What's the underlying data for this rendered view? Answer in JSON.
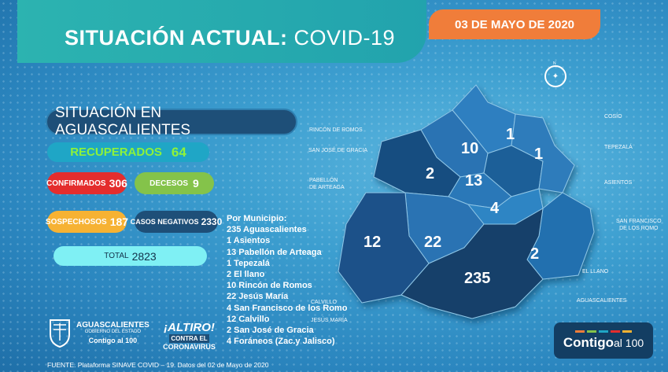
{
  "header": {
    "title_bold": "SITUACIÓN ACTUAL:",
    "title_light": "COVID-19",
    "date": "03 DE MAYO DE 2020"
  },
  "section_title": "SITUACIÓN EN AGUASCALIENTES",
  "stats": {
    "recuperados": {
      "label": "RECUPERADOS",
      "value": "64"
    },
    "confirmados": {
      "label": "CONFIRMADOS",
      "value": "306"
    },
    "decesos": {
      "label": "DECESOS",
      "value": "9"
    },
    "sospechosos": {
      "label": "SOSPECHOSOS",
      "value": "187"
    },
    "casos_negativos": {
      "label": "CASOS NEGATIVOS",
      "value": "2330"
    },
    "total": {
      "label": "TOTAL",
      "value": "2823"
    }
  },
  "municipios": {
    "heading": "Por Municipio:",
    "items": [
      "235 Aguascalientes",
      "1    Asientos",
      "13    Pabellón de Arteaga",
      "1    Tepezalá",
      "2    El llano",
      "10    Rincón de Romos",
      "22 Jesús María",
      "4    San Francisco de los Romo",
      "12    Calvillo",
      "2  San José de Gracia",
      "4  Foráneos (Zac.y Jalisco)"
    ]
  },
  "map": {
    "numbers": {
      "cosio": "1",
      "rincon_de_romos": "10",
      "tepezala": "1",
      "san_jose_de_gracia": "2",
      "pabellon_de_arteaga": "13",
      "san_francisco_de_los_romo": "4",
      "calvillo": "12",
      "jesus_maria": "22",
      "el_llano": "2",
      "aguascalientes": "235"
    },
    "labels": {
      "rincon_de_romos": "RINCÓN DE ROMOS",
      "san_jose_de_gracia": "SAN JOSÉ DE GRACIA",
      "pabellon_de_arteaga": [
        "PABELLÓN",
        "DE ARTEAGA"
      ],
      "cosio": "COSÍO",
      "tepezala": "TEPEZALÁ",
      "asientos": "ASIENTOS",
      "san_francisco_de_los_romo": [
        "SAN FRANCISCO",
        "DE LOS ROMO"
      ],
      "el_llano": "EL LLANO",
      "aguascalientes": "AGUASCALIENTES",
      "calvillo": "CALVILLO",
      "jesus_maria": "JESÚS MARÍA"
    },
    "compass": "N"
  },
  "footer": {
    "source": "FUENTE. Plataforma SINAVE COVID – 19. Datos del 02 de Mayo de 2020",
    "logo_ags": [
      "AGUASCALIENTES",
      "GOBIERNO DEL ESTADO",
      "Contigo al 100"
    ],
    "logo_altiro": [
      "¡ALTIRO!",
      "CONTRA EL",
      "CORONAVIRUS"
    ],
    "logo_contigo": {
      "main": "Contigo",
      "tail": "al 100"
    }
  },
  "colors": {
    "header_teal": "#2cb3b0",
    "date_orange": "#f07d3a",
    "recuperados_green": "#8ef23a",
    "confirmados_red": "#e42d2d",
    "decesos_green": "#84c34a",
    "sospechosos_yellow": "#f6b233",
    "negativos_navy": "#1e4f78",
    "total_cyan": "#7ff0f4"
  }
}
